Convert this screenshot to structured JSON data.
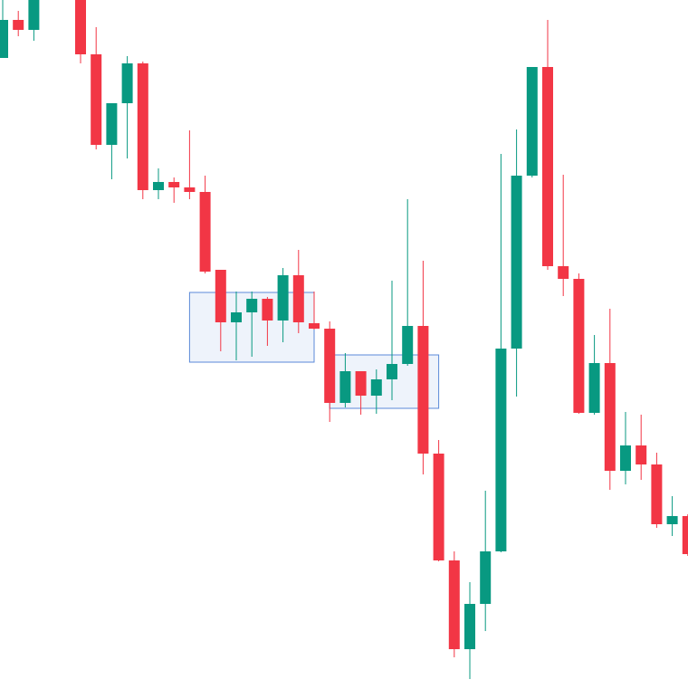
{
  "chart_data": {
    "type": "candlestick",
    "categories": [
      null,
      null,
      null,
      null,
      null,
      null,
      null,
      null,
      null,
      null,
      null,
      null,
      null,
      null,
      null,
      null,
      null,
      null,
      null,
      null,
      null,
      null,
      null,
      null,
      null,
      null,
      null,
      null,
      null,
      null,
      null,
      null,
      null,
      null,
      null,
      null,
      null,
      null,
      null,
      null,
      null,
      null,
      null,
      null,
      null
    ],
    "open": [
      697,
      739,
      728,
      null,
      null,
      761,
      701,
      601,
      647,
      691,
      551,
      560,
      554,
      549,
      463,
      405,
      416,
      431,
      407,
      457,
      404,
      398,
      316,
      351,
      324,
      342,
      359,
      401,
      260,
      142,
      44,
      94,
      152,
      376,
      567,
      687,
      467,
      453,
      305,
      360,
      241,
      269,
      248,
      182,
      191
    ],
    "high": [
      761,
      749,
      761,
      null,
      null,
      761,
      731,
      647,
      699,
      693,
      575,
      565,
      617,
      567,
      463,
      439,
      439,
      433,
      465,
      485,
      439,
      406,
      371,
      351,
      353,
      451,
      541,
      473,
      275,
      152,
      118,
      219,
      591,
      618,
      687,
      739,
      568,
      459,
      391,
      420,
      306,
      303,
      261,
      213,
      193
    ],
    "low": [
      697,
      721,
      716,
      null,
      null,
      691,
      596,
      563,
      586,
      541,
      541,
      537,
      541,
      459,
      373,
      363,
      367,
      379,
      383,
      393,
      397,
      295,
      311,
      303,
      304,
      319,
      357,
      237,
      141,
      35,
      11,
      64,
      151,
      323,
      565,
      463,
      434,
      304,
      303,
      220,
      226,
      231,
      178,
      169,
      147
    ],
    "close": [
      739,
      728,
      761,
      null,
      null,
      701,
      601,
      647,
      691,
      551,
      560,
      554,
      549,
      461,
      405,
      416,
      431,
      407,
      457,
      405,
      398,
      316,
      351,
      324,
      342,
      359,
      401,
      260,
      142,
      44,
      94,
      152,
      376,
      567,
      687,
      467,
      453,
      305,
      360,
      241,
      269,
      248,
      182,
      191,
      149
    ],
    "up_color": "#089981",
    "down_color": "#f23645",
    "zones": [
      {
        "start": 12,
        "end": 20,
        "high": 438,
        "low": 361
      },
      {
        "start": 21,
        "end": 28,
        "high": 369,
        "low": 310
      }
    ],
    "zone_color": "#5b8ad8",
    "ylim": [
      0,
      761
    ]
  }
}
